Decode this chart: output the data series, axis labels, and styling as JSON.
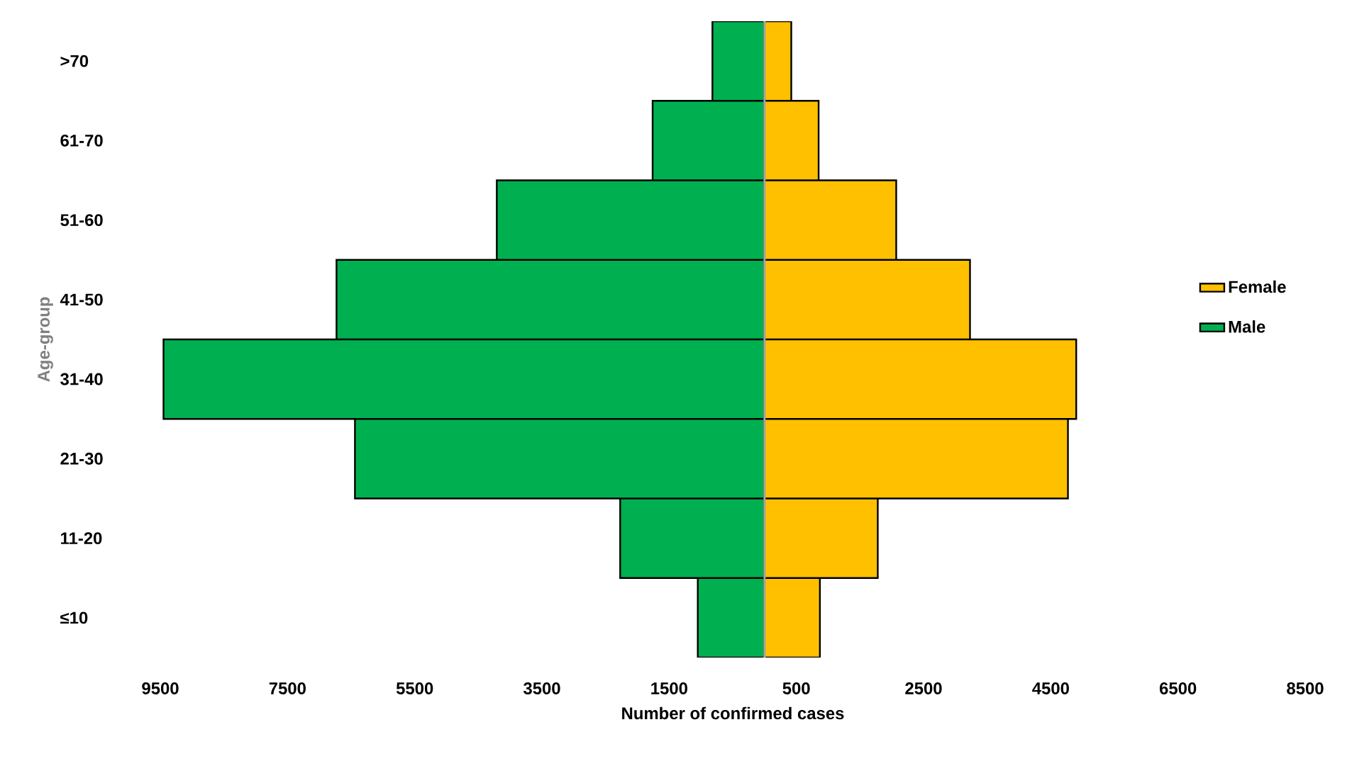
{
  "chart_data": {
    "type": "bar",
    "orientation": "horizontal",
    "xlabel": "Number of confirmed cases",
    "ylabel": "Age-group",
    "categories": [
      ">70",
      "61-70",
      "51-60",
      "41-50",
      "31-40",
      "21-30",
      "11-20",
      "≤10"
    ],
    "series": [
      {
        "name": "Female",
        "color": "#ffc000",
        "values": [
          420,
          850,
          2070,
          3230,
          4900,
          4770,
          1780,
          870
        ]
      },
      {
        "name": "Male",
        "color": "#00b050",
        "values": [
          -820,
          -1760,
          -4210,
          -6730,
          -9450,
          -6440,
          -2270,
          -1050
        ]
      }
    ],
    "xlim": [
      -9500,
      8500
    ],
    "xticks": [
      {
        "value": -9500,
        "label": "9500"
      },
      {
        "value": -7500,
        "label": "7500"
      },
      {
        "value": -5500,
        "label": "5500"
      },
      {
        "value": -3500,
        "label": "3500"
      },
      {
        "value": -1500,
        "label": "1500"
      },
      500,
      2500,
      4500,
      6500,
      8500
    ],
    "grid": false,
    "legend": "right",
    "stacked": true
  }
}
